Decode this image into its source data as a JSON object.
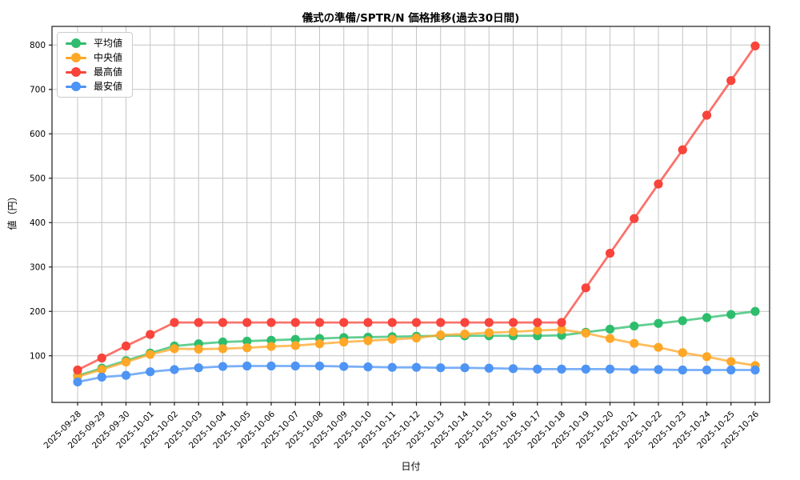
{
  "chart_data": {
    "type": "line",
    "title": "儀式の準備/SPTR/N 価格推移(過去30日間)",
    "xlabel": "日付",
    "ylabel": "値（円）",
    "x": [
      "2025-09-28",
      "2025-09-29",
      "2025-09-30",
      "2025-10-01",
      "2025-10-02",
      "2025-10-03",
      "2025-10-04",
      "2025-10-05",
      "2025-10-06",
      "2025-10-07",
      "2025-10-08",
      "2025-10-09",
      "2025-10-10",
      "2025-10-11",
      "2025-10-12",
      "2025-10-13",
      "2025-10-14",
      "2025-10-15",
      "2025-10-16",
      "2025-10-17",
      "2025-10-18",
      "2025-10-19",
      "2025-10-20",
      "2025-10-21",
      "2025-10-22",
      "2025-10-23",
      "2025-10-24",
      "2025-10-25",
      "2025-10-26"
    ],
    "series": [
      {
        "name": "平均値",
        "color": "#2ebd6d",
        "values": [
          55,
          72,
          89,
          106,
          122,
          127,
          131,
          133,
          135,
          137,
          139,
          141,
          142,
          143,
          144,
          145,
          145,
          145,
          145,
          145,
          146,
          153,
          160,
          167,
          173,
          179,
          186,
          193,
          200
        ]
      },
      {
        "name": "中央値",
        "color": "#ffa726",
        "values": [
          53,
          69,
          86,
          103,
          116,
          115,
          116,
          118,
          121,
          123,
          127,
          131,
          134,
          137,
          140,
          147,
          149,
          152,
          154,
          157,
          159,
          151,
          139,
          128,
          119,
          107,
          98,
          87,
          78
        ]
      },
      {
        "name": "最高値",
        "color": "#f8443b",
        "values": [
          68,
          95,
          122,
          148,
          175,
          175,
          175,
          175,
          175,
          175,
          175,
          175,
          175,
          175,
          175,
          175,
          175,
          175,
          175,
          175,
          175,
          253,
          331,
          409,
          487,
          564,
          642,
          720,
          798
        ]
      },
      {
        "name": "最安値",
        "color": "#4d94f5",
        "values": [
          41,
          52,
          56,
          64,
          69,
          73,
          76,
          77,
          77,
          77,
          77,
          76,
          75,
          74,
          74,
          73,
          73,
          72,
          71,
          70,
          70,
          70,
          70,
          69,
          69,
          68,
          68,
          68,
          68
        ]
      }
    ],
    "ylim": [
      -5,
      842
    ],
    "yticks": [
      100,
      200,
      300,
      400,
      500,
      600,
      700,
      800
    ],
    "grid": true,
    "legend_position": "upper left",
    "xtick_rotation": 45
  },
  "style": {
    "grid_color": "#c4c4c4",
    "spine_color": "#1a1a1a",
    "tick_label_color": "#000000",
    "background": "#ffffff"
  }
}
